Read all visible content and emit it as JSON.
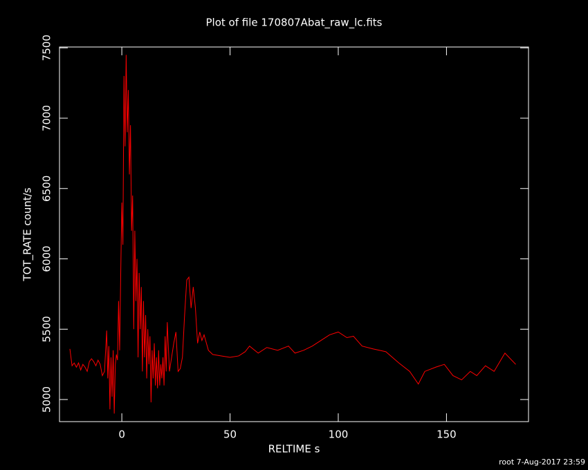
{
  "chart_data": {
    "type": "line",
    "title": "Plot of file 170807Abat_raw_lc.fits",
    "x_label": "RELTIME  s",
    "y_label": "TOT_RATE  count/s",
    "footer": "root  7-Aug-2017 23:59",
    "xlim": [
      -28.8,
      187.9
    ],
    "ylim": [
      4843,
      7506
    ],
    "xticks": [
      0,
      50,
      100,
      150
    ],
    "yticks": [
      5000,
      5500,
      6000,
      6500,
      7000,
      7500
    ],
    "x": [
      -24,
      -23,
      -22,
      -21,
      -20,
      -19,
      -18,
      -17,
      -16,
      -15,
      -14,
      -13,
      -12,
      -11,
      -10,
      -9,
      -8,
      -7,
      -6.5,
      -6,
      -5.5,
      -5,
      -4.5,
      -4,
      -3.5,
      -3,
      -2.5,
      -2,
      -1.5,
      -1,
      -0.5,
      0,
      0.5,
      1,
      1.5,
      2,
      2.5,
      3,
      3.5,
      4,
      4.5,
      5,
      5.5,
      6,
      6.5,
      7,
      7.5,
      8,
      8.5,
      9,
      9.5,
      10,
      10.5,
      11,
      11.5,
      12,
      12.5,
      13,
      13.5,
      14,
      14.5,
      15,
      15.5,
      16,
      16.5,
      17,
      17.5,
      18,
      18.5,
      19,
      19.5,
      20,
      20.5,
      21,
      22,
      23,
      24,
      25,
      26,
      27,
      28,
      29,
      30,
      31,
      32,
      33,
      34,
      35,
      36,
      37,
      38,
      40,
      42,
      46,
      50,
      54,
      57,
      59,
      63,
      67,
      72,
      77,
      80,
      84,
      88,
      92,
      96,
      100,
      104,
      107,
      111,
      116,
      122,
      128,
      133,
      137,
      140,
      145,
      149,
      153,
      157,
      161,
      164,
      168,
      172,
      177,
      182
    ],
    "series": [
      {
        "name": "TOT_RATE",
        "color": "#ff0000",
        "values": [
          5360,
          5240,
          5260,
          5230,
          5260,
          5210,
          5250,
          5230,
          5200,
          5270,
          5290,
          5270,
          5240,
          5280,
          5250,
          5170,
          5200,
          5490,
          5150,
          5380,
          4930,
          5300,
          5020,
          5350,
          4900,
          5250,
          5320,
          5280,
          5700,
          5350,
          5900,
          6400,
          6100,
          7300,
          6800,
          7450,
          6900,
          7200,
          6600,
          6950,
          6200,
          6450,
          5500,
          6200,
          5700,
          6000,
          5300,
          5900,
          5500,
          5800,
          5200,
          5700,
          5300,
          5600,
          5150,
          5500,
          5250,
          5450,
          4980,
          5350,
          5150,
          5400,
          5100,
          5300,
          5080,
          5350,
          5100,
          5250,
          5150,
          5300,
          5100,
          5450,
          5200,
          5550,
          5200,
          5300,
          5400,
          5480,
          5200,
          5220,
          5300,
          5600,
          5850,
          5870,
          5650,
          5800,
          5650,
          5400,
          5480,
          5420,
          5460,
          5350,
          5320,
          5310,
          5300,
          5310,
          5340,
          5380,
          5330,
          5370,
          5350,
          5380,
          5330,
          5350,
          5380,
          5420,
          5460,
          5480,
          5440,
          5450,
          5380,
          5360,
          5340,
          5260,
          5200,
          5110,
          5200,
          5230,
          5250,
          5170,
          5140,
          5200,
          5170,
          5240,
          5200,
          5330,
          5250
        ]
      }
    ]
  }
}
